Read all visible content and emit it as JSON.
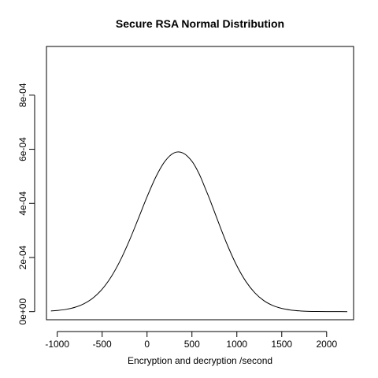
{
  "chart_data": {
    "type": "line",
    "title": "Secure RSA Normal Distribution",
    "xlabel": "Encryption and decryption /second",
    "ylabel": "",
    "xlim": [
      -1120,
      2300
    ],
    "ylim": [
      -3e-05,
      0.00098
    ],
    "x_ticks": [
      -1000,
      -500,
      0,
      500,
      1000,
      1500,
      2000
    ],
    "x_tick_labels": [
      "-1000",
      "-500",
      "0",
      "500",
      "1000",
      "1500",
      "2000"
    ],
    "y_ticks": [
      0,
      0.0002,
      0.0004,
      0.0006,
      0.0008
    ],
    "y_tick_labels": [
      "0e+00",
      "2e-04",
      "4e-04",
      "6e-04",
      "8e-04"
    ],
    "grid": false,
    "series": [
      {
        "x": [
          -1070,
          -1000,
          -900,
          -800,
          -700,
          -600,
          -500,
          -400,
          -300,
          -200,
          -100,
          0,
          100,
          200,
          300,
          400,
          500,
          580,
          650,
          700,
          800,
          900,
          1000,
          1100,
          1200,
          1300,
          1400,
          1500,
          1600,
          1700,
          1800,
          1900,
          2000,
          2100,
          2230
        ],
        "y": [
          2.4e-06,
          4.1e-06,
          8.4e-06,
          1.62e-05,
          2.95e-05,
          5.09e-05,
          8.3e-05,
          0.0001283,
          0.0001877,
          0.0002601,
          0.0003413,
          0.0004241,
          0.000499,
          0.0005559,
          0.0005865,
          0.0005862,
          0.0005556,
          0.0005091,
          0.0004542,
          0.0004135,
          0.0003255,
          0.0002418,
          0.0001693,
          0.0001117,
          6.95e-05,
          4.07e-05,
          2.25e-05,
          1.17e-05,
          5.7e-06,
          2.6e-06,
          1.1e-06,
          5e-07,
          2e-07,
          1e-07,
          0.0
        ]
      }
    ]
  }
}
